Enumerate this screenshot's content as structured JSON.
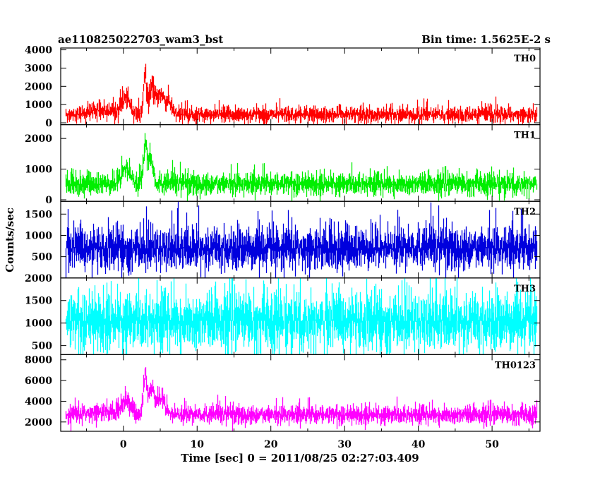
{
  "header": {
    "left_title": "ae110825022703_wam3_bst",
    "right_title": "Bin time: 1.5625E-2 s"
  },
  "chart_data": {
    "type": "line",
    "xlabel": "Time [sec] 0 = 2011/08/25 02:27:03.409",
    "ylabel": "Counts/sec",
    "xlim": [
      -8.5,
      56.5
    ],
    "xticks": [
      0,
      10,
      20,
      30,
      40,
      50
    ],
    "time_range": [
      -7.8,
      56.0
    ],
    "bin_time": 0.015625,
    "panels": [
      {
        "name": "TH0",
        "color": "#ff0000",
        "ylim": [
          -100,
          4100
        ],
        "yticks": [
          0,
          1000,
          2000,
          3000,
          4000
        ],
        "baseline": 450,
        "noise": 220,
        "features": [
          {
            "x": -3.0,
            "value": 250,
            "width": 2.5
          },
          {
            "x": 0.3,
            "value": 850,
            "width": 0.8
          },
          {
            "x": 2.9,
            "value": 2000,
            "width": 0.35
          },
          {
            "x": 3.8,
            "value": 1400,
            "width": 0.5
          },
          {
            "x": 5.0,
            "value": 1100,
            "width": 0.8
          },
          {
            "x": 6.2,
            "value": 600,
            "width": 0.5
          }
        ]
      },
      {
        "name": "TH1",
        "color": "#00ee00",
        "ylim": [
          -50,
          2450
        ],
        "yticks": [
          0,
          1000,
          2000
        ],
        "baseline": 520,
        "noise": 180,
        "features": [
          {
            "x": 0.3,
            "value": 500,
            "width": 0.8
          },
          {
            "x": 2.9,
            "value": 1100,
            "width": 0.35
          },
          {
            "x": 3.6,
            "value": 800,
            "width": 0.5
          }
        ]
      },
      {
        "name": "TH2",
        "color": "#0000dd",
        "ylim": [
          0,
          1800
        ],
        "yticks": [
          500,
          1000,
          1500
        ],
        "baseline": 700,
        "noise": 250,
        "features": []
      },
      {
        "name": "TH3",
        "color": "#00ffff",
        "ylim": [
          300,
          2000
        ],
        "yticks": [
          500,
          1000,
          1500,
          2000
        ],
        "baseline": 1050,
        "noise": 320,
        "features": []
      },
      {
        "name": "TH0123",
        "color": "#ff00ff",
        "ylim": [
          1100,
          8500
        ],
        "yticks": [
          2000,
          4000,
          6000,
          8000
        ],
        "baseline": 2700,
        "noise": 450,
        "features": [
          {
            "x": -3.0,
            "value": 300,
            "width": 2.5
          },
          {
            "x": 0.3,
            "value": 1500,
            "width": 0.8
          },
          {
            "x": 2.9,
            "value": 3800,
            "width": 0.35
          },
          {
            "x": 3.8,
            "value": 2400,
            "width": 0.5
          },
          {
            "x": 5.0,
            "value": 1600,
            "width": 0.8
          }
        ]
      }
    ]
  }
}
